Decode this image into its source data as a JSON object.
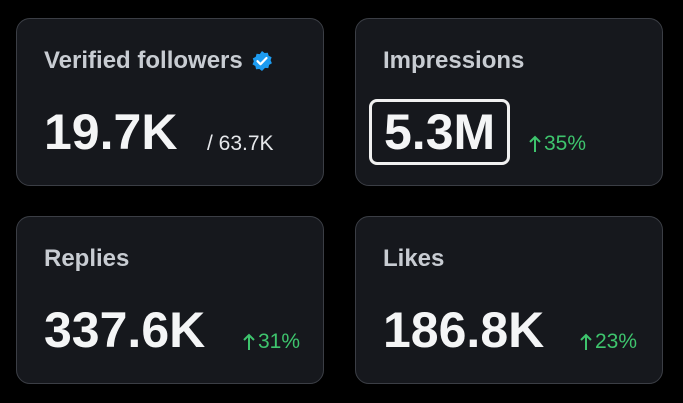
{
  "cards": [
    {
      "label": "Verified followers",
      "value": "19.7K",
      "total": "/ 63.7K"
    },
    {
      "label": "Impressions",
      "value": "5.3M",
      "change": "35%"
    },
    {
      "label": "Replies",
      "value": "337.6K",
      "change": "31%"
    },
    {
      "label": "Likes",
      "value": "186.8K",
      "change": "23%"
    }
  ]
}
